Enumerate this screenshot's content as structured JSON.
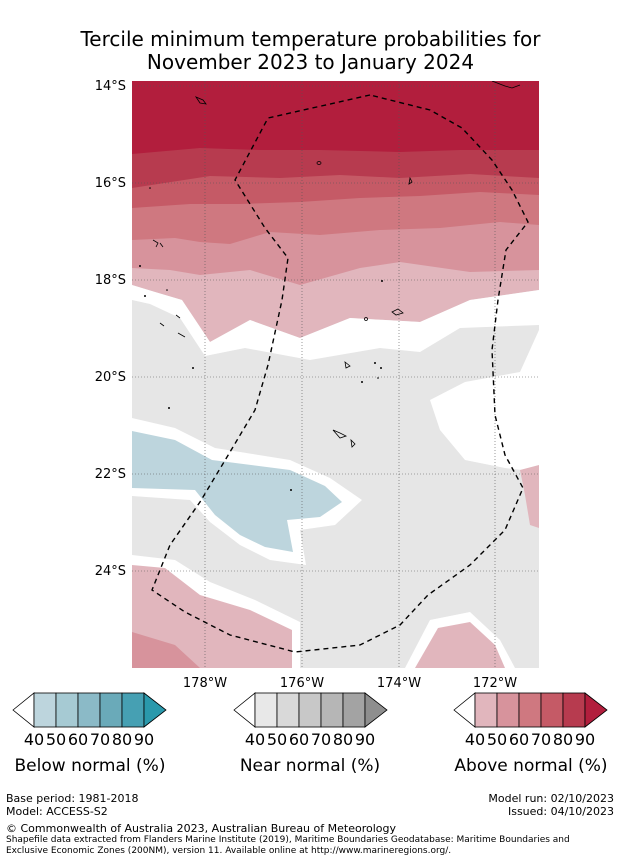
{
  "title_line1": "Tercile minimum temperature probabilities for",
  "title_line2": "November 2023 to January 2024",
  "lat_labels": [
    "14°S",
    "16°S",
    "18°S",
    "20°S",
    "22°S",
    "24°S"
  ],
  "lon_labels": [
    "178°W",
    "176°W",
    "174°W",
    "172°W"
  ],
  "legends": {
    "below": {
      "title": "Below normal (%)",
      "ticks": [
        "40",
        "50",
        "60",
        "70",
        "80",
        "90"
      ],
      "colors": [
        "#ffffff",
        "#bdd5dd",
        "#a6cad3",
        "#8bbac7",
        "#6aaab9",
        "#46a0b3",
        "#2a99ac"
      ]
    },
    "near": {
      "title": "Near normal (%)",
      "ticks": [
        "40",
        "50",
        "60",
        "70",
        "80",
        "90"
      ],
      "colors": [
        "#ffffff",
        "#e8e8e8",
        "#d9d9d9",
        "#c8c8c8",
        "#b6b6b6",
        "#a3a3a3",
        "#8e8e8e"
      ]
    },
    "above": {
      "title": "Above normal (%)",
      "ticks": [
        "40",
        "50",
        "60",
        "70",
        "80",
        "90"
      ],
      "colors": [
        "#ffffff",
        "#e1b6bd",
        "#d7939c",
        "#cf7880",
        "#c55a66",
        "#b73b4f",
        "#b21e3d"
      ]
    }
  },
  "base_period": "Base period: 1981-2018",
  "model": "Model: ACCESS-S2",
  "model_run": "Model run: 02/10/2023",
  "issued": "Issued: 04/10/2023",
  "copyright": "© Commonwealth of Australia 2023, Australian Bureau of Meteorology",
  "shapefile_line1": "Shapefile data extracted from Flanders Marine Institute (2019), Maritime Boundaries Geodatabase: Maritime Boundaries and",
  "shapefile_line2": "Exclusive Economic Zones (200NM), version 11. Available online at http://www.marineregions.org/."
}
